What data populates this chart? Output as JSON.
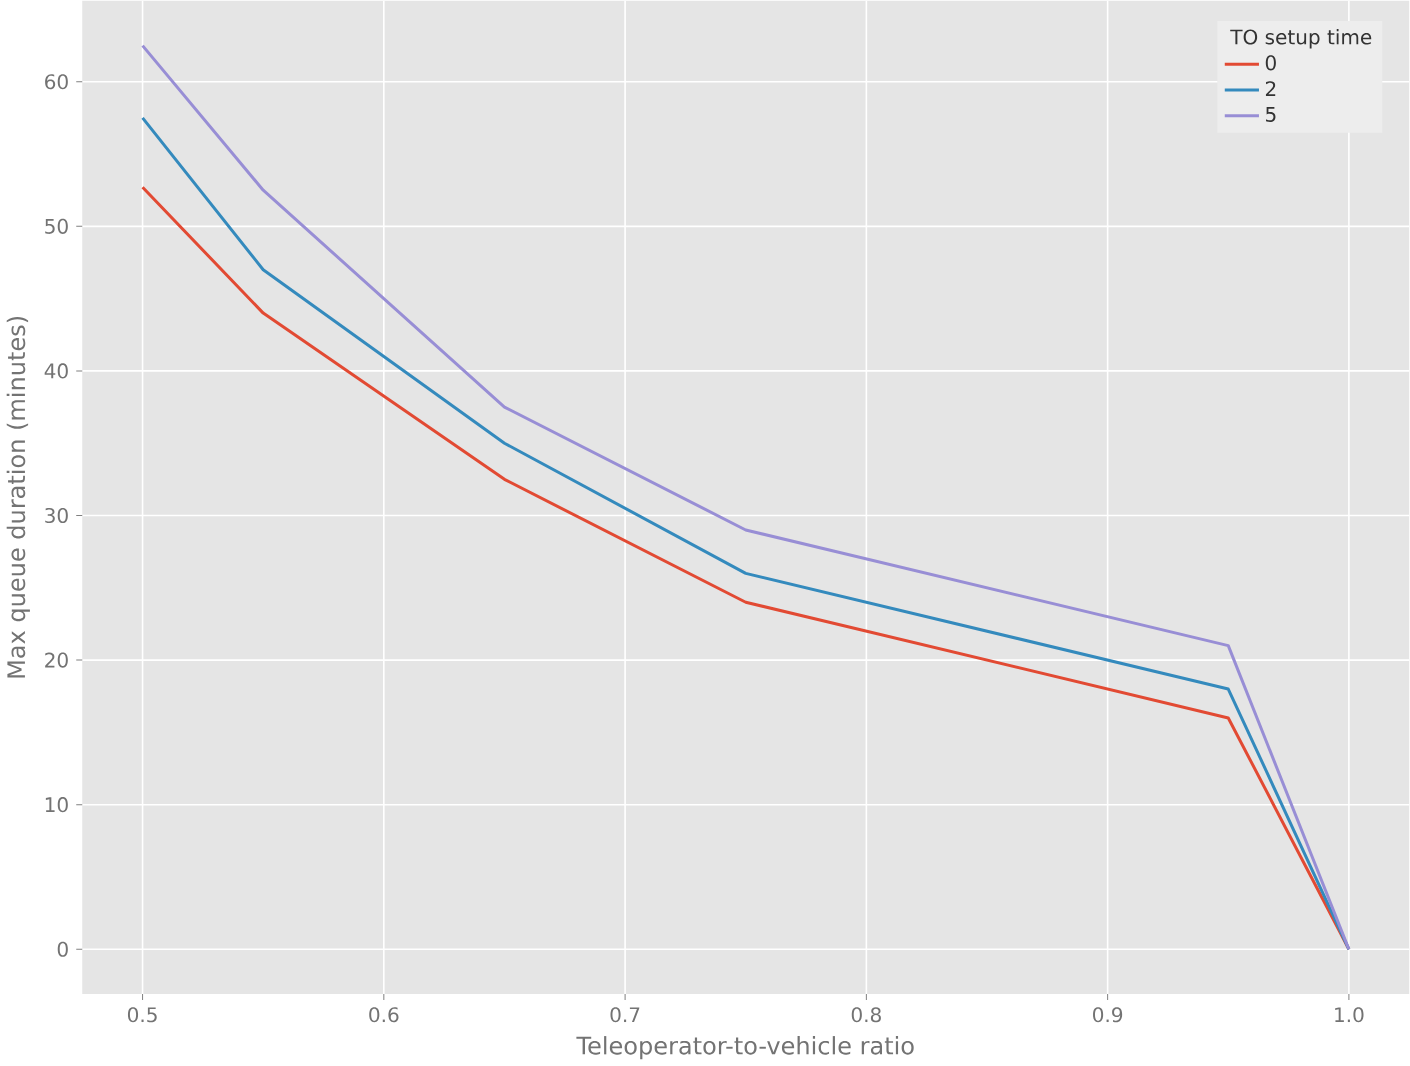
{
  "chart_data": {
    "type": "line",
    "xlabel": "Teleoperator-to-vehicle ratio",
    "ylabel": "Max queue duration (minutes)",
    "legend_title": "TO setup time",
    "x": [
      0.5,
      0.55,
      0.65,
      0.75,
      0.95,
      1.0
    ],
    "series": [
      {
        "name": "0",
        "color": "#e24a33",
        "values": [
          52.7,
          44,
          32.5,
          24,
          16,
          0
        ]
      },
      {
        "name": "2",
        "color": "#348abd",
        "values": [
          57.5,
          47,
          35,
          26,
          18,
          0
        ]
      },
      {
        "name": "5",
        "color": "#988ed5",
        "values": [
          62.5,
          52.5,
          37.5,
          29,
          21,
          0
        ]
      }
    ],
    "xlim": [
      0.475,
      1.025
    ],
    "ylim": [
      -3.1,
      65.6
    ],
    "xticks": [
      {
        "value": 0.5,
        "label": "0.5"
      },
      {
        "value": 0.6,
        "label": "0.6"
      },
      {
        "value": 0.7,
        "label": "0.7"
      },
      {
        "value": 0.8,
        "label": "0.8"
      },
      {
        "value": 0.9,
        "label": "0.9"
      },
      {
        "value": 1.0,
        "label": "1.0"
      }
    ],
    "yticks": [
      0,
      10,
      20,
      30,
      40,
      50,
      60
    ],
    "grid": true,
    "legend": "top right",
    "line_style": "solid",
    "marker": "none"
  }
}
